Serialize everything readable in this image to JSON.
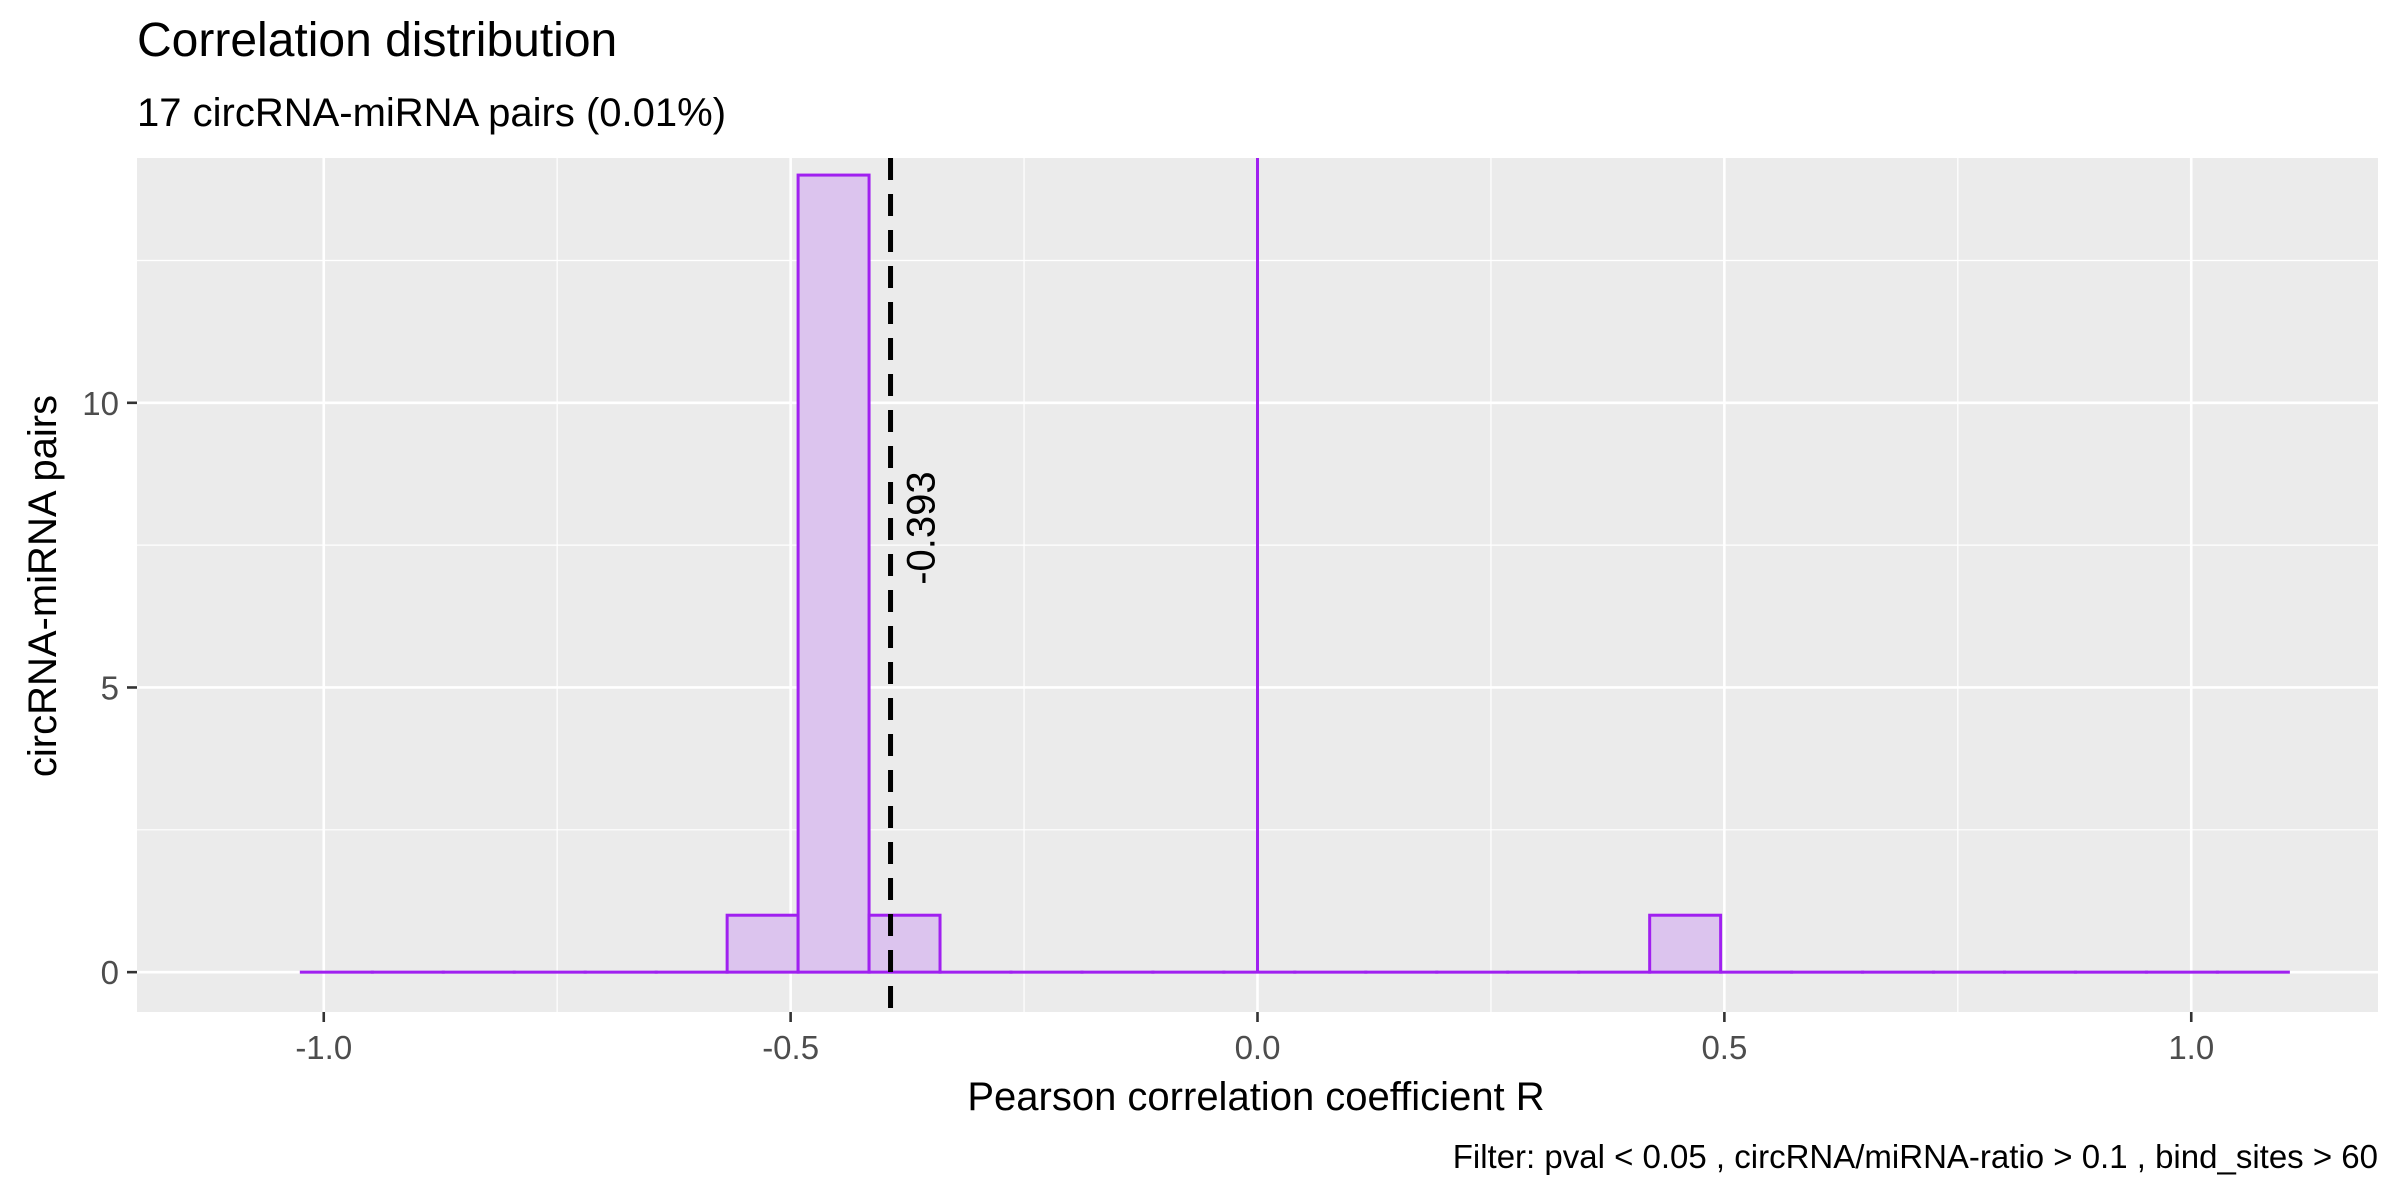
{
  "chart_data": {
    "type": "histogram",
    "title": "Correlation distribution",
    "subtitle": "17 circRNA-miRNA pairs (0.01%)",
    "xlabel": "Pearson correlation coefficient R",
    "ylabel": "circRNA-miRNA pairs",
    "caption": "Filter: pval < 0.05 , circRNA/miRNA-ratio > 0.1 , bind_sites > 60",
    "xlim": [
      -1.2,
      1.2
    ],
    "ylim": [
      -0.7,
      14.3
    ],
    "x_ticks": [
      -1.0,
      -0.5,
      0.0,
      0.5,
      1.0
    ],
    "x_tick_labels": [
      "-1.0",
      "-0.5",
      "0.0",
      "0.5",
      "1.0"
    ],
    "y_ticks": [
      0,
      5,
      10
    ],
    "y_tick_labels": [
      "0",
      "5",
      "10"
    ],
    "grid": true,
    "bin_width": 0.076,
    "bins": [
      {
        "x0": -1.024,
        "x1": -0.948,
        "count": 0
      },
      {
        "x0": -0.948,
        "x1": -0.872,
        "count": 0
      },
      {
        "x0": -0.872,
        "x1": -0.796,
        "count": 0
      },
      {
        "x0": -0.796,
        "x1": -0.72,
        "count": 0
      },
      {
        "x0": -0.72,
        "x1": -0.644,
        "count": 0
      },
      {
        "x0": -0.644,
        "x1": -0.568,
        "count": 0
      },
      {
        "x0": -0.568,
        "x1": -0.492,
        "count": 1
      },
      {
        "x0": -0.492,
        "x1": -0.416,
        "count": 14
      },
      {
        "x0": -0.416,
        "x1": -0.34,
        "count": 1
      },
      {
        "x0": -0.34,
        "x1": -0.264,
        "count": 0
      },
      {
        "x0": -0.264,
        "x1": -0.188,
        "count": 0
      },
      {
        "x0": -0.188,
        "x1": -0.112,
        "count": 0
      },
      {
        "x0": -0.112,
        "x1": -0.036,
        "count": 0
      },
      {
        "x0": -0.036,
        "x1": 0.04,
        "count": 0
      },
      {
        "x0": 0.04,
        "x1": 0.116,
        "count": 0
      },
      {
        "x0": 0.116,
        "x1": 0.192,
        "count": 0
      },
      {
        "x0": 0.192,
        "x1": 0.268,
        "count": 0
      },
      {
        "x0": 0.268,
        "x1": 0.344,
        "count": 0
      },
      {
        "x0": 0.344,
        "x1": 0.42,
        "count": 0
      },
      {
        "x0": 0.42,
        "x1": 0.496,
        "count": 1
      },
      {
        "x0": 0.496,
        "x1": 0.572,
        "count": 0
      },
      {
        "x0": 0.572,
        "x1": 0.648,
        "count": 0
      },
      {
        "x0": 0.648,
        "x1": 0.724,
        "count": 0
      },
      {
        "x0": 0.724,
        "x1": 0.8,
        "count": 0
      },
      {
        "x0": 0.8,
        "x1": 0.876,
        "count": 0
      },
      {
        "x0": 0.876,
        "x1": 0.952,
        "count": 0
      },
      {
        "x0": 0.952,
        "x1": 1.028,
        "count": 0
      },
      {
        "x0": 1.028,
        "x1": 1.104,
        "count": 0
      }
    ],
    "reference_line": {
      "x": 0.0,
      "style": "solid"
    },
    "mean_line": {
      "x": -0.393,
      "label": "-0.393",
      "style": "dashed"
    },
    "colors": {
      "panel_background": "#ebebeb",
      "grid": "#ffffff",
      "bar_fill": "#dcc4ee",
      "bar_outline": "#a020f0",
      "mean_line": "#000000"
    }
  }
}
